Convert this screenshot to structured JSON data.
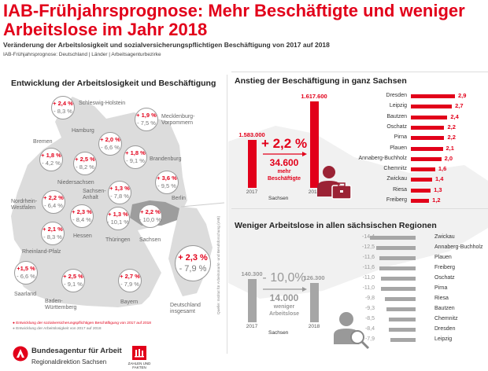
{
  "header": {
    "title": "IAB-Frühjahrsprognose: Mehr Beschäftigte und weniger Arbeitslose im Jahr 2018",
    "subtitle": "Veränderung der Arbeitslosigkeit und sozialversicherungspflichtigen Beschäftigung von 2017 auf 2018",
    "subtitle2": "IAB-Frühjahrsprognose: Deutschland | Länder | Arbeitsagenturbezirke"
  },
  "map": {
    "title": "Entwicklung der Arbeitslosigkeit und Beschäftigung",
    "states": [
      {
        "name": "Schleswig-Holstein",
        "emp": "+ 2,4 %",
        "unemp": "- 8,3 %"
      },
      {
        "name": "Mecklenburg-Vorpommern",
        "emp": "+ 1,9 %",
        "unemp": "- 7,5 %"
      },
      {
        "name": "Hamburg",
        "emp": "+ 2,0 %",
        "unemp": "- 6,6 %"
      },
      {
        "name": "Bremen",
        "emp": "+ 1,8 %",
        "unemp": "- 4,2 %"
      },
      {
        "name": "Niedersachsen",
        "emp": "+ 2,5 %",
        "unemp": "- 8,2 %"
      },
      {
        "name": "Brandenburg",
        "emp": "+ 1,8 %",
        "unemp": "- 9,1 %"
      },
      {
        "name": "Berlin",
        "emp": "+ 3,6 %",
        "unemp": "- 9,5 %"
      },
      {
        "name": "Sachsen-Anhalt",
        "emp": "+ 1,3 %",
        "unemp": "- 7,8 %"
      },
      {
        "name": "Nordrhein-Westfalen",
        "emp": "+ 2,2 %",
        "unemp": "- 6,4 %"
      },
      {
        "name": "Hessen",
        "emp": "+ 2,3 %",
        "unemp": "- 8,4 %"
      },
      {
        "name": "Thüringen",
        "emp": "+ 1,3 %",
        "unemp": "- 10,1 %"
      },
      {
        "name": "Sachsen",
        "emp": "+ 2,2 %",
        "unemp": "- 10,0 %"
      },
      {
        "name": "Rheinland-Pfalz",
        "emp": "+ 2,1 %",
        "unemp": "- 8,3 %"
      },
      {
        "name": "Saarland",
        "emp": "+1,5 %",
        "unemp": "- 6,6 %"
      },
      {
        "name": "Baden-Württemberg",
        "emp": "+ 2,5 %",
        "unemp": "- 9,1 %"
      },
      {
        "name": "Bayern",
        "emp": "+ 2,7 %",
        "unemp": "- 7,9 %"
      },
      {
        "name": "Deutschland insgesamt",
        "emp": "+ 2,3 %",
        "unemp": "- 7,9 %"
      }
    ],
    "legend_emp": "Entwicklung der sozialversicherungspflichtigen Beschäftigung von 2017 auf 2018",
    "legend_unemp": "Entwicklung der Arbeitslosigkeit von 2017 auf 2018",
    "source": "Quelle: Institut für Arbeitsmarkt- und Berufsforschung (IAB)"
  },
  "colors": {
    "red": "#e2001a",
    "gray": "#a6a6a6",
    "map": "#dcdcdc",
    "sachsen": "#9d9d9d"
  },
  "chart_data": [
    {
      "type": "bar",
      "title": "Anstieg der Beschäftigung in ganz Sachsen",
      "region": "Sachsen",
      "years": [
        "2017",
        "2018"
      ],
      "totals": [
        1583000,
        1617600
      ],
      "total_labels": [
        "1.583.000",
        "1.617.600"
      ],
      "change": "+ 2,2 %",
      "diff": "34.600",
      "diff_text": [
        "mehr",
        "Beschäftigte"
      ],
      "categories": [
        "Dresden",
        "Leipzig",
        "Bautzen",
        "Oschatz",
        "Pirna",
        "Plauen",
        "Annaberg-Buchholz",
        "Chemnitz",
        "Zwickau",
        "Riesa",
        "Freiberg"
      ],
      "values": [
        2.9,
        2.7,
        2.4,
        2.2,
        2.2,
        2.1,
        2.0,
        1.6,
        1.4,
        1.3,
        1.2
      ],
      "labels": [
        "2,9",
        "2,7",
        "2,4",
        "2,2",
        "2,2",
        "2,1",
        "2,0",
        "1,6",
        "1,4",
        "1,3",
        "1,2"
      ]
    },
    {
      "type": "bar",
      "title": "Weniger Arbeitslose in allen sächsischen Regionen",
      "region": "Sachsen",
      "years": [
        "2017",
        "2018"
      ],
      "totals": [
        140300,
        126300
      ],
      "total_labels": [
        "140.300",
        "126.300"
      ],
      "change": "- 10,0%",
      "diff": "14.000",
      "diff_text": [
        "weniger",
        "Arbeitslose"
      ],
      "categories": [
        "Zwickau",
        "Annaberg-Buchholz",
        "Plauen",
        "Freiberg",
        "Oschatz",
        "Pirna",
        "Riesa",
        "Bautzen",
        "Chemnitz",
        "Dresden",
        "Leipzig"
      ],
      "values": [
        -14.4,
        -12.5,
        -11.6,
        -11.6,
        -11.0,
        -11.0,
        -9.8,
        -9.3,
        -8.5,
        -8.4,
        -7.9
      ],
      "labels": [
        "-14,4",
        "-12,5",
        "-11,6",
        "-11,6",
        "-11,0",
        "-11,0",
        "-9,8",
        "-9,3",
        "-8,5",
        "-8,4",
        "-7,9"
      ]
    }
  ],
  "footer": {
    "org": "Bundesagentur für Arbeit",
    "region": "Regionaldirektion Sachsen",
    "badge": "ZAHLEN UND FAKTEN"
  }
}
